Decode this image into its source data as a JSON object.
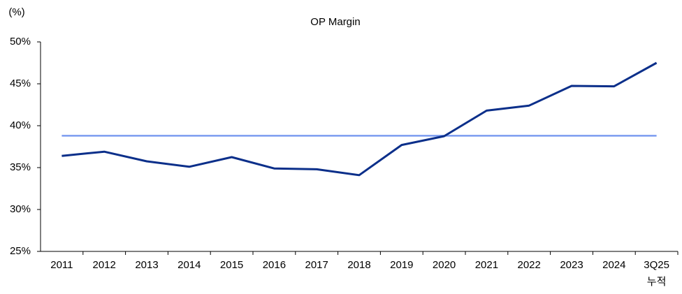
{
  "chart_data": {
    "type": "line",
    "title": "OP Margin",
    "y_label": "(%)",
    "categories": [
      "2011",
      "2012",
      "2013",
      "2014",
      "2015",
      "2016",
      "2017",
      "2018",
      "2019",
      "2020",
      "2021",
      "2022",
      "2023",
      "2024",
      "3Q25\n누적"
    ],
    "series": [
      {
        "color": "#0b2f8a",
        "values": [
          36.4,
          36.9,
          35.75,
          35.1,
          36.25,
          34.9,
          34.8,
          34.1,
          37.7,
          38.75,
          41.8,
          42.4,
          44.75,
          44.7,
          47.5
        ]
      },
      {
        "color": "#7b9cf0",
        "values": [
          38.8,
          38.8,
          38.8,
          38.8,
          38.8,
          38.8,
          38.8,
          38.8,
          38.8,
          38.8,
          38.8,
          38.8,
          38.8,
          38.8,
          38.8
        ]
      }
    ],
    "ylim": [
      25,
      50
    ],
    "yticks": [
      {
        "value": 25,
        "label": "25%"
      },
      {
        "value": 30,
        "label": "30%"
      },
      {
        "value": 35,
        "label": "35%"
      },
      {
        "value": 40,
        "label": "40%"
      },
      {
        "value": 45,
        "label": "45%"
      },
      {
        "value": 50,
        "label": "50%"
      }
    ],
    "grid": false
  }
}
